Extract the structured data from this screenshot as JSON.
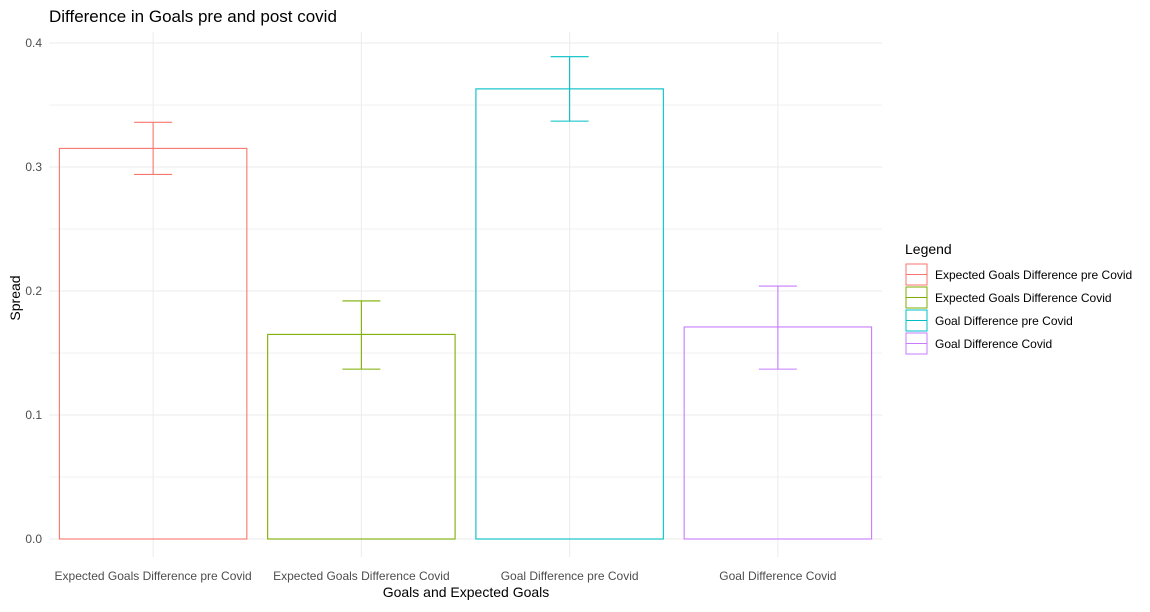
{
  "chart_data": {
    "type": "bar",
    "title": "Difference in Goals pre and post covid",
    "xlabel": "Goals and Expected Goals",
    "ylabel": "Spread",
    "categories": [
      "Expected Goals Difference pre Covid",
      "Expected Goals Difference Covid",
      "Goal Difference pre Covid",
      "Goal Difference Covid"
    ],
    "values": [
      0.315,
      0.165,
      0.363,
      0.171
    ],
    "error_low": [
      0.294,
      0.137,
      0.337,
      0.137
    ],
    "error_high": [
      0.336,
      0.192,
      0.389,
      0.204
    ],
    "colors": [
      "#F8766D",
      "#7CAE00",
      "#00BFC4",
      "#C77CFF"
    ],
    "ylim": [
      0,
      0.4
    ],
    "yticks": [
      0.0,
      0.1,
      0.2,
      0.3,
      0.4
    ],
    "ytick_labels": [
      "0.0",
      "0.1",
      "0.2",
      "0.3",
      "0.4"
    ],
    "grid": true,
    "legend": {
      "title": "Legend",
      "position": "right",
      "entries": [
        "Expected Goals Difference pre Covid",
        "Expected Goals Difference Covid",
        "Goal Difference pre Covid",
        "Goal Difference Covid"
      ]
    }
  }
}
